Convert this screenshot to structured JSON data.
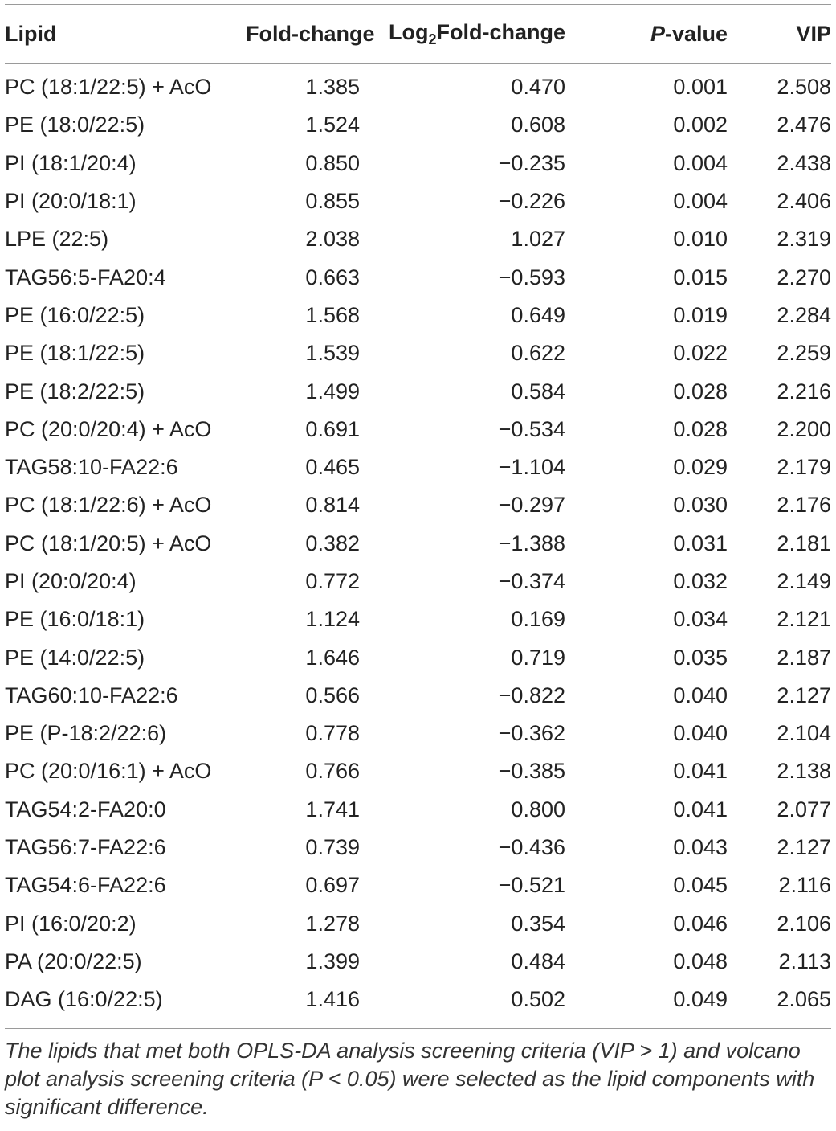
{
  "table": {
    "headers": {
      "lipid": "Lipid",
      "fold_change": "Fold-change",
      "log2_prefix": "Log",
      "log2_sub": "2",
      "log2_suffix": "Fold-change",
      "pvalue_italic": "P",
      "pvalue_rest": "-value",
      "vip": "VIP"
    },
    "rows": [
      [
        "PC (18:1/22:5) + AcO",
        "1.385",
        "0.470",
        "0.001",
        "2.508"
      ],
      [
        "PE (18:0/22:5)",
        "1.524",
        "0.608",
        "0.002",
        "2.476"
      ],
      [
        "PI (18:1/20:4)",
        "0.850",
        "−0.235",
        "0.004",
        "2.438"
      ],
      [
        "PI (20:0/18:1)",
        "0.855",
        "−0.226",
        "0.004",
        "2.406"
      ],
      [
        "LPE (22:5)",
        "2.038",
        "1.027",
        "0.010",
        "2.319"
      ],
      [
        "TAG56:5-FA20:4",
        "0.663",
        "−0.593",
        "0.015",
        "2.270"
      ],
      [
        "PE (16:0/22:5)",
        "1.568",
        "0.649",
        "0.019",
        "2.284"
      ],
      [
        "PE (18:1/22:5)",
        "1.539",
        "0.622",
        "0.022",
        "2.259"
      ],
      [
        "PE (18:2/22:5)",
        "1.499",
        "0.584",
        "0.028",
        "2.216"
      ],
      [
        "PC (20:0/20:4) + AcO",
        "0.691",
        "−0.534",
        "0.028",
        "2.200"
      ],
      [
        "TAG58:10-FA22:6",
        "0.465",
        "−1.104",
        "0.029",
        "2.179"
      ],
      [
        "PC (18:1/22:6) + AcO",
        "0.814",
        "−0.297",
        "0.030",
        "2.176"
      ],
      [
        "PC (18:1/20:5) + AcO",
        "0.382",
        "−1.388",
        "0.031",
        "2.181"
      ],
      [
        "PI (20:0/20:4)",
        "0.772",
        "−0.374",
        "0.032",
        "2.149"
      ],
      [
        "PE (16:0/18:1)",
        "1.124",
        "0.169",
        "0.034",
        "2.121"
      ],
      [
        "PE (14:0/22:5)",
        "1.646",
        "0.719",
        "0.035",
        "2.187"
      ],
      [
        "TAG60:10-FA22:6",
        "0.566",
        "−0.822",
        "0.040",
        "2.127"
      ],
      [
        "PE (P-18:2/22:6)",
        "0.778",
        "−0.362",
        "0.040",
        "2.104"
      ],
      [
        "PC (20:0/16:1) + AcO",
        "0.766",
        "−0.385",
        "0.041",
        "2.138"
      ],
      [
        "TAG54:2-FA20:0",
        "1.741",
        "0.800",
        "0.041",
        "2.077"
      ],
      [
        "TAG56:7-FA22:6",
        "0.739",
        "−0.436",
        "0.043",
        "2.127"
      ],
      [
        "TAG54:6-FA22:6",
        "0.697",
        "−0.521",
        "0.045",
        "2.116"
      ],
      [
        "PI (16:0/20:2)",
        "1.278",
        "0.354",
        "0.046",
        "2.106"
      ],
      [
        "PA (20:0/22:5)",
        "1.399",
        "0.484",
        "0.048",
        "2.113"
      ],
      [
        "DAG (16:0/22:5)",
        "1.416",
        "0.502",
        "0.049",
        "2.065"
      ]
    ]
  },
  "footnote": "The lipids that met both OPLS-DA analysis screening criteria (VIP > 1) and volcano plot analysis screening criteria (P < 0.05) were selected as the lipid components with significant difference."
}
